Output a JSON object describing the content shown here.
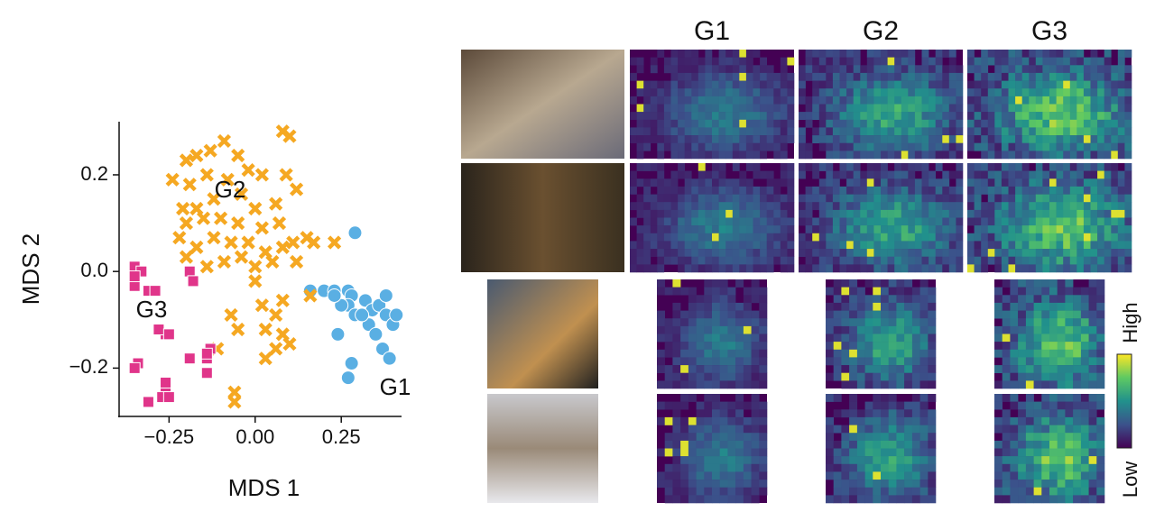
{
  "chart_data": {
    "type": "scatter",
    "xlabel": "MDS 1",
    "ylabel": "MDS 2",
    "xlim": [
      -0.395,
      0.425
    ],
    "xticks": [
      {
        "value": -0.25,
        "label": "−0.25"
      },
      {
        "value": 0,
        "label": "0.00"
      },
      0.25
    ],
    "ylim": [
      -0.3,
      0.31
    ],
    "yticks": [
      {
        "value": -0.2,
        "label": "−0.2"
      },
      {
        "value": 0,
        "label": "0.0"
      },
      0.2
    ],
    "series": [
      {
        "name": "G1",
        "color": "#5aafe3",
        "marker": "circle",
        "x": [
          0.29,
          0.16,
          0.2,
          0.23,
          0.27,
          0.28,
          0.27,
          0.29,
          0.32,
          0.34,
          0.36,
          0.38,
          0.33,
          0.35,
          0.38,
          0.4,
          0.41,
          0.24,
          0.28,
          0.27,
          0.37,
          0.39,
          0.31,
          0.25,
          0.23
        ],
        "values": [
          0.08,
          -0.04,
          -0.04,
          -0.04,
          -0.04,
          -0.05,
          -0.07,
          -0.09,
          -0.06,
          -0.08,
          -0.07,
          -0.05,
          -0.11,
          -0.13,
          -0.09,
          -0.11,
          -0.09,
          -0.13,
          -0.19,
          -0.22,
          -0.16,
          -0.18,
          -0.09,
          -0.07,
          -0.05
        ]
      },
      {
        "name": "G2",
        "color": "#f5a822",
        "marker": "x",
        "x": [
          -0.24,
          -0.2,
          -0.17,
          -0.13,
          -0.09,
          -0.05,
          -0.02,
          0.08,
          0.1,
          0.02,
          0.09,
          0.12,
          0.06,
          0.0,
          -0.04,
          -0.08,
          -0.14,
          -0.19,
          -0.21,
          -0.17,
          -0.2,
          -0.22,
          -0.15,
          -0.1,
          -0.05,
          0.02,
          0.07,
          0.11,
          0.15,
          0.08,
          0.03,
          -0.02,
          -0.07,
          -0.12,
          -0.17,
          -0.2,
          -0.14,
          -0.09,
          -0.04,
          0.0,
          0.05,
          0.12,
          0.17,
          0.23,
          0.16,
          0.08,
          0.06,
          0.02,
          0.03,
          0.08,
          0.1,
          0.06,
          0.03,
          -0.05,
          -0.07,
          -0.11,
          -0.06,
          -0.06,
          0.0,
          -0.12
        ],
        "values": [
          0.19,
          0.23,
          0.24,
          0.25,
          0.27,
          0.24,
          0.21,
          0.29,
          0.28,
          0.2,
          0.2,
          0.17,
          0.14,
          0.13,
          0.16,
          0.19,
          0.2,
          0.18,
          0.13,
          0.13,
          0.1,
          0.07,
          0.11,
          0.11,
          0.1,
          0.09,
          0.1,
          0.06,
          0.07,
          0.05,
          0.04,
          0.06,
          0.06,
          0.07,
          0.05,
          0.03,
          0.01,
          0.02,
          0.03,
          0.01,
          0.02,
          0.02,
          0.06,
          0.06,
          -0.05,
          -0.06,
          -0.09,
          -0.07,
          -0.12,
          -0.13,
          -0.15,
          -0.16,
          -0.18,
          -0.12,
          -0.09,
          -0.16,
          -0.25,
          -0.27,
          -0.02,
          0.15
        ]
      },
      {
        "name": "G3",
        "color": "#e0358a",
        "marker": "square",
        "x": [
          -0.35,
          -0.33,
          -0.35,
          -0.31,
          -0.29,
          -0.35,
          -0.19,
          -0.18,
          -0.26,
          -0.28,
          -0.25,
          -0.34,
          -0.35,
          -0.19,
          -0.13,
          -0.14,
          -0.14,
          -0.14,
          -0.31,
          -0.26,
          -0.27,
          -0.25,
          -0.26
        ],
        "values": [
          0.01,
          0,
          -0.03,
          -0.04,
          -0.04,
          -0.01,
          0,
          -0.02,
          -0.13,
          -0.12,
          -0.13,
          -0.19,
          -0.2,
          -0.18,
          -0.16,
          -0.18,
          -0.21,
          -0.17,
          -0.27,
          -0.24,
          -0.26,
          -0.26,
          -0.23
        ]
      }
    ]
  },
  "panel": {
    "columns": [
      "G1",
      "G2",
      "G3"
    ],
    "colorbar": {
      "high": "High",
      "low": "Low"
    }
  }
}
